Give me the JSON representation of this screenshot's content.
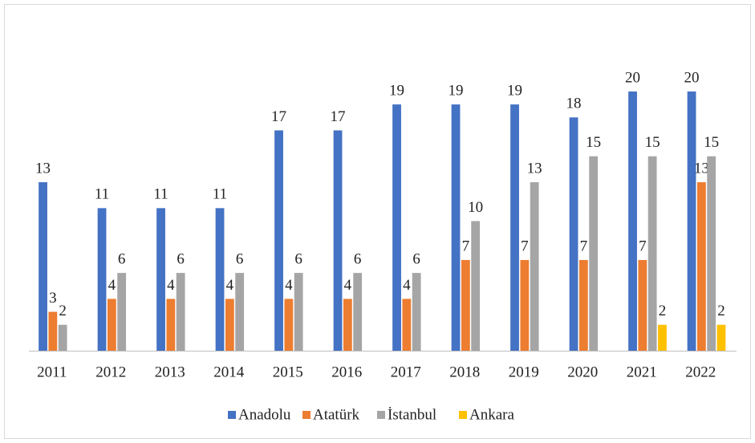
{
  "chart_data": {
    "type": "bar",
    "categories": [
      "2011",
      "2012",
      "2013",
      "2014",
      "2015",
      "2016",
      "2017",
      "2018",
      "2019",
      "2020",
      "2021",
      "2022"
    ],
    "series": [
      {
        "name": "Anadolu",
        "color": "#4472c4",
        "values": [
          13,
          11,
          11,
          11,
          17,
          17,
          19,
          19,
          19,
          18,
          20,
          20
        ]
      },
      {
        "name": "Atatürk",
        "color": "#ed7d31",
        "values": [
          3,
          4,
          4,
          4,
          4,
          4,
          4,
          7,
          7,
          7,
          7,
          13
        ]
      },
      {
        "name": "İstanbul",
        "color": "#a5a5a5",
        "values": [
          2,
          6,
          6,
          6,
          6,
          6,
          6,
          10,
          13,
          15,
          15,
          15
        ]
      },
      {
        "name": "Ankara",
        "color": "#ffc000",
        "values": [
          null,
          null,
          null,
          null,
          null,
          null,
          null,
          null,
          null,
          null,
          2,
          2
        ]
      }
    ],
    "ylim": [
      0,
      20
    ],
    "legend": "bottom"
  }
}
